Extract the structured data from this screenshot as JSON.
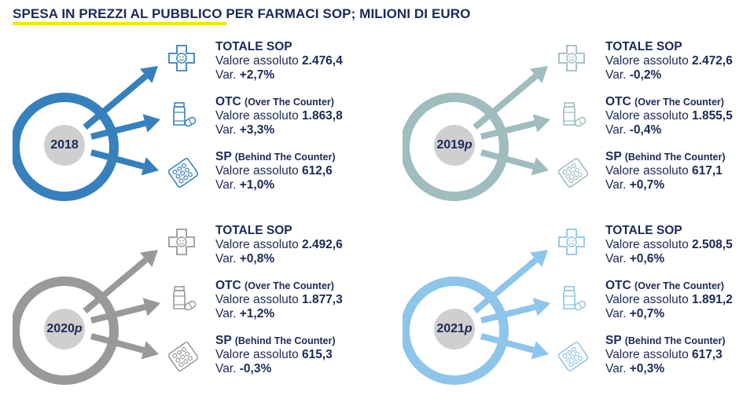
{
  "title": "SPESA IN PREZZI AL PUBBLICO PER FARMACI SOP; MILIONI DI EURO",
  "labels": {
    "value": "Valore assoluto",
    "var": "Var."
  },
  "panels": [
    {
      "year": "2018",
      "suffix": "",
      "color": "#3580bd",
      "items": [
        {
          "name": "TOTALE SOP",
          "sub": "",
          "value": "2.476,4",
          "var": "+2,7%"
        },
        {
          "name": "OTC",
          "sub": "(Over The Counter)",
          "value": "1.863,8",
          "var": "+3,3%"
        },
        {
          "name": "SP",
          "sub": "(Behind The Counter)",
          "value": "612,6",
          "var": "+1,0%"
        }
      ]
    },
    {
      "year": "2019",
      "suffix": "p",
      "color": "#9fbcbf",
      "items": [
        {
          "name": "TOTALE SOP",
          "sub": "",
          "value": "2.472,6",
          "var": "-0,2%"
        },
        {
          "name": "OTC",
          "sub": "(Over The Counter)",
          "value": "1.855,5",
          "var": "-0,4%"
        },
        {
          "name": "SP",
          "sub": "(Behind The Counter)",
          "value": "617,1",
          "var": "+0,7%"
        }
      ]
    },
    {
      "year": "2020",
      "suffix": "p",
      "color": "#999999",
      "items": [
        {
          "name": "TOTALE SOP",
          "sub": "",
          "value": "2.492,6",
          "var": "+0,8%"
        },
        {
          "name": "OTC",
          "sub": "(Over The Counter)",
          "value": "1.877,3",
          "var": "+1,2%"
        },
        {
          "name": "SP",
          "sub": "(Behind The Counter)",
          "value": "615,3",
          "var": "-0,3%"
        }
      ]
    },
    {
      "year": "2021",
      "suffix": "p",
      "color": "#8ec5ea",
      "items": [
        {
          "name": "TOTALE SOP",
          "sub": "",
          "value": "2.508,5",
          "var": "+0,6%"
        },
        {
          "name": "OTC",
          "sub": "(Over The Counter)",
          "value": "1.891,2",
          "var": "+0,7%"
        },
        {
          "name": "SP",
          "sub": "(Behind The Counter)",
          "value": "617,3",
          "var": "+0,3%"
        }
      ]
    }
  ]
}
